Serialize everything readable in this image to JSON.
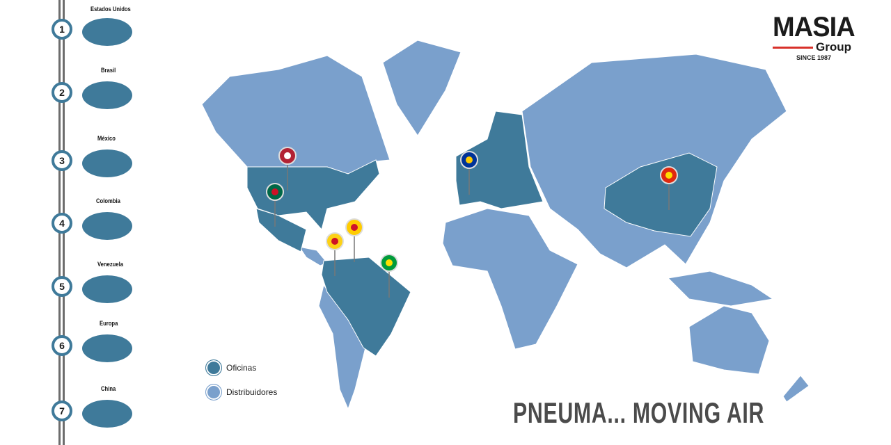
{
  "sidebar": {
    "items": [
      {
        "number": "1",
        "label": "Estados Unidos"
      },
      {
        "number": "2",
        "label": "Brasil"
      },
      {
        "number": "3",
        "label": "México"
      },
      {
        "number": "4",
        "label": "Colombia"
      },
      {
        "number": "5",
        "label": "Venezuela"
      },
      {
        "number": "6",
        "label": "Europa"
      },
      {
        "number": "7",
        "label": "China"
      }
    ]
  },
  "logo": {
    "name": "MASIA",
    "sub": "Group",
    "since": "SINCE 1987"
  },
  "legend": {
    "offices": "Oficinas",
    "distributors": "Distribuidores"
  },
  "slogan": "PNEUMA... MOVING AIR",
  "map": {
    "pins": [
      "Estados Unidos",
      "México",
      "Colombia",
      "Venezuela",
      "Brasil",
      "Europa",
      "China"
    ]
  },
  "colors": {
    "offices": "#3f7a9a",
    "distributors": "#7aa0cc",
    "accent": "#d8312a"
  }
}
